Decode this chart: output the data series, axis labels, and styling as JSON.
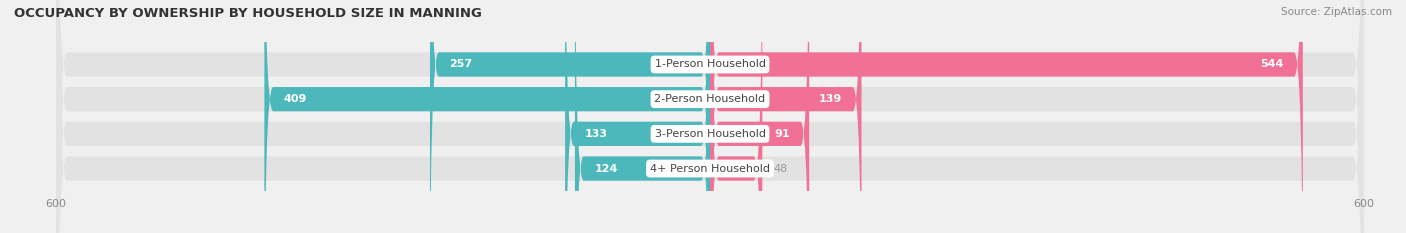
{
  "title": "OCCUPANCY BY OWNERSHIP BY HOUSEHOLD SIZE IN MANNING",
  "source": "Source: ZipAtlas.com",
  "categories": [
    "1-Person Household",
    "2-Person Household",
    "3-Person Household",
    "4+ Person Household"
  ],
  "owner_values": [
    257,
    409,
    133,
    124
  ],
  "renter_values": [
    544,
    139,
    91,
    48
  ],
  "owner_color": "#4db8bc",
  "renter_color": "#f07096",
  "label_color_inside": "#ffffff",
  "label_color_outside": "#999999",
  "axis_limit": 600,
  "background_color": "#f0f0f0",
  "bar_background": "#e2e2e2",
  "title_fontsize": 9.5,
  "label_fontsize": 8,
  "category_fontsize": 8,
  "axis_fontsize": 8
}
